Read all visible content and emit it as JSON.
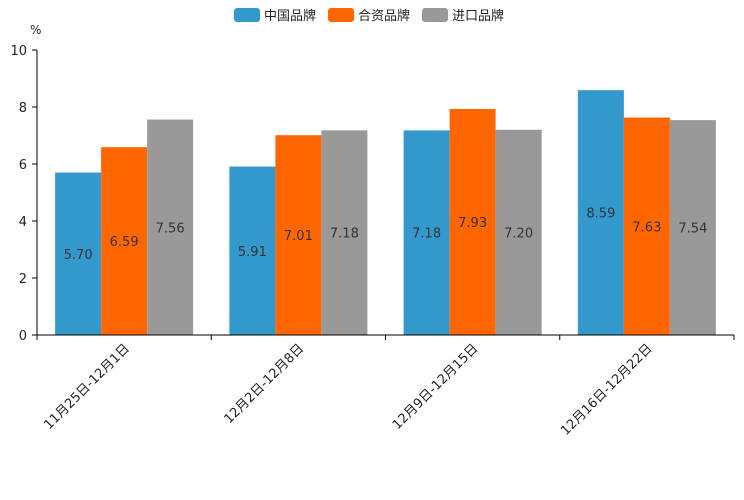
{
  "chart_data": {
    "type": "bar",
    "title": "",
    "xlabel": "",
    "ylabel": "%",
    "ylim": [
      0,
      10
    ],
    "yticks": [
      0,
      2,
      4,
      6,
      8,
      10
    ],
    "grid": false,
    "legend_position": "top-center",
    "categories": [
      "11月25日-12月1日",
      "12月2日-12月8日",
      "12月9日-12月15日",
      "12月16日-12月22日"
    ],
    "series": [
      {
        "name": "中国品牌",
        "color": "#3399cc",
        "values": [
          5.7,
          5.91,
          7.18,
          8.59
        ],
        "labels": [
          "5.70",
          "5.91",
          "7.18",
          "8.59"
        ]
      },
      {
        "name": "合资品牌",
        "color": "#ff6600",
        "values": [
          6.59,
          7.01,
          7.93,
          7.63
        ],
        "labels": [
          "6.59",
          "7.01",
          "7.93",
          "7.63"
        ]
      },
      {
        "name": "进口品牌",
        "color": "#999999",
        "values": [
          7.56,
          7.18,
          7.2,
          7.54
        ],
        "labels": [
          "7.56",
          "7.18",
          "7.20",
          "7.54"
        ]
      }
    ]
  }
}
